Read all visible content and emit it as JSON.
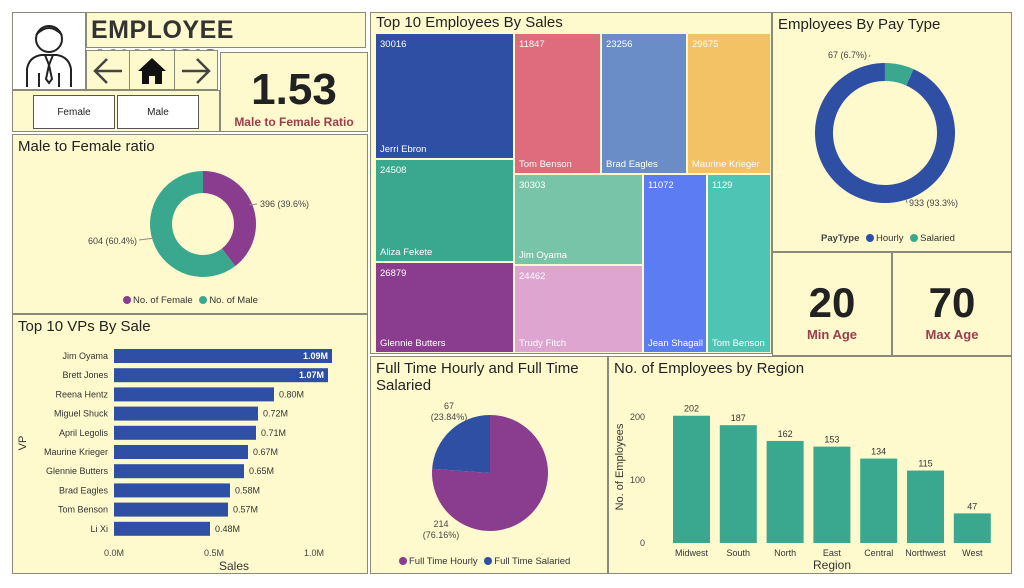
{
  "header": {
    "title": "EMPLOYEE ANALYSIS",
    "filters": [
      "Female",
      "Male"
    ],
    "ratio_value": "1.53",
    "ratio_label": "Male to Female Ratio"
  },
  "colors": {
    "panel_bg": "#fffacd",
    "blue": "#2e4fa3",
    "teal": "#3aa88f",
    "purple": "#8a3d8f",
    "kpi_label": "#9b3d4a"
  },
  "icons": [
    "employee-avatar-icon",
    "back-arrow-icon",
    "home-icon",
    "forward-arrow-icon"
  ],
  "kpis": {
    "min_age_value": "20",
    "min_age_label": "Min Age",
    "max_age_value": "70",
    "max_age_label": "Max  Age"
  },
  "chart_data": [
    {
      "id": "gender",
      "type": "pie",
      "title": "Male to Female ratio",
      "donut": true,
      "slices": [
        {
          "name": "No. of Female",
          "value": 396,
          "label": "396 (39.6%)",
          "color": "#8a3d8f"
        },
        {
          "name": "No. of Male",
          "value": 604,
          "label": "604 (60.4%)",
          "color": "#3aa88f"
        }
      ],
      "legend_position": "bottom"
    },
    {
      "id": "top_sales",
      "type": "treemap",
      "title": "Top 10 Employees By Sales",
      "items": [
        {
          "name": "Jerri Ebron",
          "value": 30016,
          "color": "#2e4fa3"
        },
        {
          "name": "Aliza Fekete",
          "value": 24508,
          "color": "#3aa88f"
        },
        {
          "name": "Glennie Butters",
          "value": 26879,
          "color": "#8a3d8f"
        },
        {
          "name": "Tom Benson",
          "value": 11847,
          "color": "#de6c7c"
        },
        {
          "name": "Brad Eagles",
          "value": 23256,
          "color": "#6a8dc8"
        },
        {
          "name": "Maurine Krieger",
          "value": 29675,
          "color": "#f2c265"
        },
        {
          "name": "Jim Oyama",
          "value": 30303,
          "color": "#78c4a8"
        },
        {
          "name": "Trudy Fitch",
          "value": 24462,
          "color": "#dda5d0"
        },
        {
          "name": "Jean Shagall",
          "value": 11072,
          "color": "#5b7cf2"
        },
        {
          "name": "Tom Benson",
          "value": 1129,
          "color": "#4dc4b4"
        }
      ]
    },
    {
      "id": "pay_type",
      "type": "pie",
      "title": "Employees By Pay Type",
      "donut": true,
      "slices": [
        {
          "name": "Hourly",
          "value": 933,
          "label": "933 (93.3%)",
          "color": "#2e4fa3"
        },
        {
          "name": "Salaried",
          "value": 67,
          "label": "67 (6.7%)",
          "color": "#3aa88f"
        }
      ],
      "legend_title": "PayType",
      "legend_position": "bottom"
    },
    {
      "id": "vp_sales",
      "type": "bar",
      "orientation": "horizontal",
      "title": "Top 10 VPs By Sale",
      "categories": [
        "Jim Oyama",
        "Brett Jones",
        "Reena Hentz",
        "Miguel Shuck",
        "April Legolis",
        "Maurine Krieger",
        "Glennie Butters",
        "Brad Eagles",
        "Tom Benson",
        "Li Xi"
      ],
      "values": [
        1.09,
        1.07,
        0.8,
        0.72,
        0.71,
        0.67,
        0.65,
        0.58,
        0.57,
        0.48
      ],
      "value_labels": [
        "1.09M",
        "1.07M",
        "0.80M",
        "0.72M",
        "0.71M",
        "0.67M",
        "0.65M",
        "0.58M",
        "0.57M",
        "0.48M"
      ],
      "xlabel": "Sales",
      "ylabel": "VP",
      "xticks": [
        "0.0M",
        "0.5M",
        "1.0M"
      ],
      "xtick_values": [
        0,
        0.5,
        1.0
      ],
      "xlim": [
        0,
        1.1
      ],
      "color": "#2e4fa3"
    },
    {
      "id": "ft_pie",
      "type": "pie",
      "title": "Full Time Hourly and Full Time Salaried",
      "donut": false,
      "slices": [
        {
          "name": "Full Time Hourly",
          "value": 214,
          "label": "214\n(76.16%)",
          "color": "#8a3d8f"
        },
        {
          "name": "Full Time Salaried",
          "value": 67,
          "label": "67\n(23.84%)",
          "color": "#2e4fa3"
        }
      ],
      "legend_position": "bottom"
    },
    {
      "id": "region",
      "type": "bar",
      "title": "No. of Employees by Region",
      "categories": [
        "Midwest",
        "South",
        "North",
        "East",
        "Central",
        "Northwest",
        "West"
      ],
      "values": [
        202,
        187,
        162,
        153,
        134,
        115,
        47
      ],
      "xlabel": "Region",
      "ylabel": "No. of Employees",
      "yticks": [
        0,
        100,
        200
      ],
      "ylim": [
        0,
        220
      ],
      "color": "#3aa88f"
    }
  ]
}
